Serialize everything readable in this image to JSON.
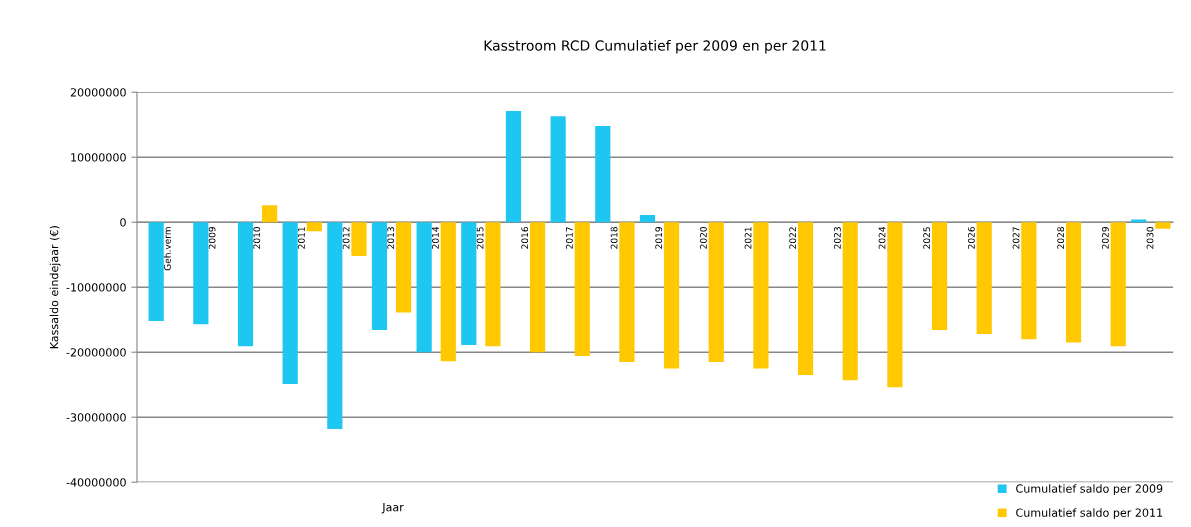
{
  "chart_data": {
    "type": "bar",
    "title": "Kasstroom RCD Cumulatief per 2009 en per 2011",
    "xlabel": "Jaar",
    "ylabel": "Kassaldo eindejaar (€)",
    "categories": [
      "Geh.verm",
      "2009",
      "2010",
      "2011",
      "2012",
      "2013",
      "2014",
      "2015",
      "2016",
      "2017",
      "2018",
      "2019",
      "2020",
      "2021",
      "2022",
      "2023",
      "2024",
      "2025",
      "2026",
      "2027",
      "2028",
      "2029",
      "2030"
    ],
    "series": [
      {
        "name": "Cumulatief saldo per 2009",
        "color": "#1ec6f2",
        "values": [
          -15200000,
          -15700000,
          -19100000,
          -24900000,
          -31800000,
          -16600000,
          -20000000,
          -18900000,
          17100000,
          16300000,
          14800000,
          1100000,
          null,
          null,
          null,
          null,
          null,
          null,
          null,
          null,
          null,
          null,
          400000
        ]
      },
      {
        "name": "Cumulatief saldo per 2011",
        "color": "#ffc800",
        "values": [
          null,
          null,
          2600000,
          -1400000,
          -5200000,
          -13900000,
          -21400000,
          -19100000,
          -20000000,
          -20600000,
          -21500000,
          -22500000,
          -21500000,
          -22500000,
          -23500000,
          -24300000,
          -25400000,
          -16600000,
          -17200000,
          -18000000,
          -18500000,
          -19100000,
          -1000000
        ]
      }
    ],
    "ylim": [
      -40000000,
      20000000
    ],
    "yticks": [
      -40000000,
      -30000000,
      -20000000,
      -10000000,
      0,
      10000000,
      20000000
    ],
    "grid": "y",
    "legend": "bottom right"
  }
}
